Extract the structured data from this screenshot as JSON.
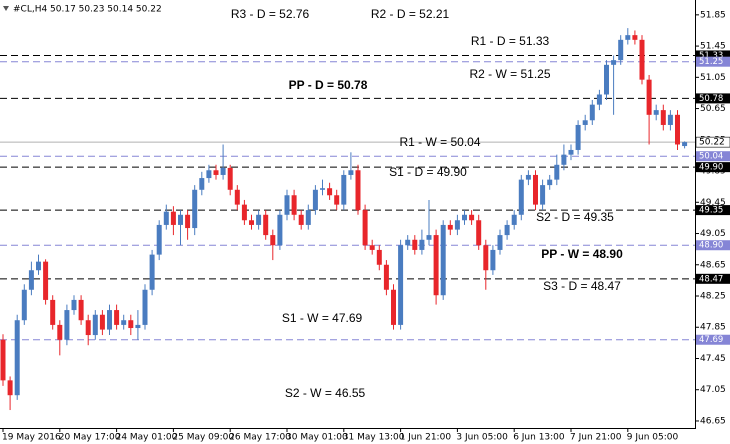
{
  "chart_data": {
    "type": "candlestick",
    "header": "#CL,H4  50.17 50.23 50.14 50.22",
    "up_color": "#4a7cc0",
    "down_color": "#e8262b",
    "ylim": [
      46.56,
      52.04
    ],
    "yticks": [
      51.85,
      51.45,
      51.05,
      50.65,
      50.25,
      49.85,
      49.45,
      49.05,
      48.65,
      48.25,
      47.85,
      47.45,
      47.05,
      46.65
    ],
    "categories": [
      "19 May 2016",
      null,
      null,
      null,
      null,
      null,
      null,
      null,
      "20 May 17:00",
      null,
      null,
      null,
      null,
      null,
      null,
      null,
      "24 May 01:00",
      null,
      null,
      null,
      null,
      null,
      null,
      null,
      "25 May 09:00",
      null,
      null,
      null,
      null,
      null,
      null,
      null,
      "26 May 17:00",
      null,
      null,
      null,
      null,
      null,
      null,
      null,
      "30 May 01:00",
      null,
      null,
      null,
      null,
      null,
      null,
      null,
      "31 May 13:00",
      null,
      null,
      null,
      null,
      null,
      null,
      null,
      "1 Jun 21:00",
      null,
      null,
      null,
      null,
      null,
      null,
      null,
      "3 Jun 05:00",
      null,
      null,
      null,
      null,
      null,
      null,
      null,
      "6 Jun 13:00",
      null,
      null,
      null,
      null,
      null,
      null,
      null,
      "7 Jun 21:00",
      null,
      null,
      null,
      null,
      null,
      null,
      null,
      "9 Jun 05:00",
      null,
      null,
      null,
      null,
      null,
      null,
      null,
      null
    ],
    "open": [
      47.69,
      47.17,
      46.98,
      47.94,
      48.33,
      48.58,
      48.69,
      48.2,
      47.88,
      47.69,
      48.07,
      48.2,
      47.94,
      47.75,
      48.01,
      47.82,
      48.07,
      47.88,
      47.94,
      47.84,
      47.88,
      48.33,
      48.78,
      49.16,
      49.33,
      49.16,
      49.29,
      49.12,
      49.61,
      49.76,
      49.86,
      49.8,
      49.89,
      49.61,
      49.42,
      49.22,
      49.16,
      49.29,
      49.03,
      48.9,
      49.29,
      49.54,
      49.29,
      49.16,
      49.35,
      49.61,
      49.63,
      49.54,
      49.42,
      49.8,
      49.86,
      49.35,
      48.9,
      48.84,
      48.65,
      48.33,
      47.88,
      48.9,
      48.97,
      48.84,
      48.97,
      49.03,
      48.26,
      49.16,
      49.1,
      49.22,
      49.29,
      49.22,
      48.9,
      48.58,
      48.84,
      49.03,
      49.16,
      49.29,
      49.74,
      49.8,
      49.42,
      49.67,
      49.74,
      49.93,
      50.06,
      50.12,
      50.44,
      50.5,
      50.7,
      50.83,
      51.21,
      51.27,
      51.53,
      51.59,
      51.53,
      51.02,
      50.57,
      50.63,
      50.44,
      50.57,
      50.17
    ],
    "high": [
      47.76,
      47.22,
      48.01,
      48.4,
      48.69,
      48.78,
      48.72,
      48.26,
      47.94,
      48.14,
      48.26,
      48.26,
      48.01,
      48.07,
      48.07,
      48.14,
      48.14,
      48.01,
      48.01,
      48.07,
      48.4,
      48.84,
      49.22,
      49.42,
      49.4,
      49.35,
      49.35,
      49.67,
      49.84,
      49.93,
      49.93,
      50.19,
      49.93,
      49.67,
      49.48,
      49.29,
      49.35,
      49.35,
      49.1,
      49.35,
      49.61,
      49.61,
      49.35,
      49.42,
      49.67,
      49.74,
      49.7,
      49.61,
      49.86,
      50.09,
      49.93,
      49.42,
      48.97,
      48.9,
      48.71,
      48.4,
      48.97,
      49.03,
      49.03,
      49.1,
      49.48,
      49.1,
      49.22,
      49.22,
      49.29,
      49.35,
      49.35,
      49.29,
      48.97,
      48.9,
      49.1,
      49.22,
      49.35,
      49.8,
      49.86,
      49.86,
      49.74,
      49.8,
      50.06,
      50.19,
      50.19,
      50.5,
      50.57,
      50.76,
      50.89,
      51.27,
      51.33,
      51.59,
      51.68,
      51.65,
      51.59,
      51.08,
      50.7,
      50.7,
      50.63,
      50.63,
      50.23
    ],
    "low": [
      47.1,
      46.79,
      46.92,
      47.88,
      48.26,
      48.52,
      48.14,
      47.82,
      47.49,
      47.62,
      48.01,
      47.88,
      47.62,
      47.69,
      47.75,
      47.75,
      47.82,
      47.82,
      47.75,
      47.69,
      47.82,
      48.26,
      48.71,
      49.1,
      49.03,
      48.9,
      48.97,
      49.03,
      49.54,
      49.7,
      49.74,
      49.74,
      49.54,
      49.35,
      49.16,
      49.1,
      49.1,
      48.97,
      48.71,
      48.84,
      49.22,
      49.22,
      49.1,
      49.1,
      49.29,
      49.54,
      49.48,
      49.35,
      49.35,
      49.74,
      49.29,
      48.84,
      48.78,
      48.58,
      48.26,
      47.82,
      47.82,
      48.84,
      48.78,
      48.78,
      48.9,
      48.14,
      48.2,
      49.03,
      49.03,
      49.16,
      49.16,
      48.84,
      48.33,
      48.52,
      48.78,
      48.97,
      49.1,
      49.22,
      49.67,
      49.35,
      49.35,
      49.61,
      49.67,
      49.86,
      49.99,
      50.06,
      50.37,
      50.44,
      50.63,
      50.76,
      50.57,
      51.21,
      51.47,
      51.47,
      50.96,
      50.19,
      50.5,
      50.37,
      50.37,
      50.12,
      50.14
    ],
    "close": [
      47.17,
      46.98,
      47.94,
      48.33,
      48.58,
      48.69,
      48.2,
      47.88,
      47.69,
      48.07,
      48.2,
      47.94,
      47.75,
      48.01,
      47.82,
      48.07,
      47.88,
      47.94,
      47.84,
      47.88,
      48.33,
      48.78,
      49.16,
      49.33,
      49.16,
      49.29,
      49.12,
      49.61,
      49.76,
      49.86,
      49.8,
      49.89,
      49.61,
      49.42,
      49.22,
      49.16,
      49.29,
      49.03,
      48.9,
      49.29,
      49.54,
      49.29,
      49.16,
      49.35,
      49.61,
      49.63,
      49.54,
      49.42,
      49.8,
      49.86,
      49.35,
      48.9,
      48.84,
      48.65,
      48.33,
      47.88,
      48.9,
      48.97,
      48.84,
      48.97,
      49.03,
      48.26,
      49.16,
      49.1,
      49.22,
      49.29,
      49.22,
      48.9,
      48.58,
      48.84,
      49.03,
      49.16,
      49.29,
      49.74,
      49.8,
      49.42,
      49.67,
      49.74,
      49.93,
      50.06,
      50.12,
      50.44,
      50.5,
      50.7,
      50.83,
      51.21,
      51.27,
      51.53,
      51.59,
      51.53,
      51.02,
      50.57,
      50.63,
      50.44,
      50.57,
      50.19,
      50.22
    ],
    "last_price": {
      "value": 50.22,
      "color": "#b0b0b0"
    },
    "levels": [
      {
        "label": "R3 - D = 52.76",
        "value": 52.76,
        "color": "#e8262b",
        "line_color": "#000000"
      },
      {
        "label": "R2 - D = 52.21",
        "value": 52.21,
        "color": "#e8262b",
        "line_color": "#000000"
      },
      {
        "label": "R1 - D = 51.33",
        "value": 51.33,
        "tag": "51.33",
        "color": "#e8262b",
        "line_color": "#000000"
      },
      {
        "label": "R2 - W = 51.25",
        "value": 51.25,
        "tag": "51.25",
        "color": "#8585d6",
        "line_color": "#8585d6"
      },
      {
        "label": "PP - D = 50.78",
        "value": 50.78,
        "tag": "50.78",
        "color": "#3a62d8",
        "line_color": "#000000",
        "bold": true
      },
      {
        "label": "R1 - W = 50.04",
        "value": 50.04,
        "tag": "50.04",
        "color": "#a0a0e0",
        "line_color": "#8585d6"
      },
      {
        "label": "S1 - D = 49.90",
        "value": 49.9,
        "tag": "49.90",
        "color": "#e8262b",
        "line_color": "#000000"
      },
      {
        "label": "S2 - D = 49.35",
        "value": 49.35,
        "tag": "49.35",
        "color": "#e8262b",
        "line_color": "#000000"
      },
      {
        "label": "PP - W = 48.90",
        "value": 48.9,
        "tag": "48.90",
        "color": "#5050c8",
        "line_color": "#8585d6",
        "bold": true
      },
      {
        "label": "S3 - D = 48.47",
        "value": 48.47,
        "tag": "48.47",
        "color": "#e8262b",
        "line_color": "#000000"
      },
      {
        "label": "S1 - W = 47.69",
        "value": 47.69,
        "tag": "47.69",
        "color": "#8585d6",
        "line_color": "#8585d6"
      },
      {
        "label": "S2 - W = 46.55",
        "value": 46.55,
        "color": "#8585d6",
        "line_color": "#8585d6"
      }
    ]
  }
}
